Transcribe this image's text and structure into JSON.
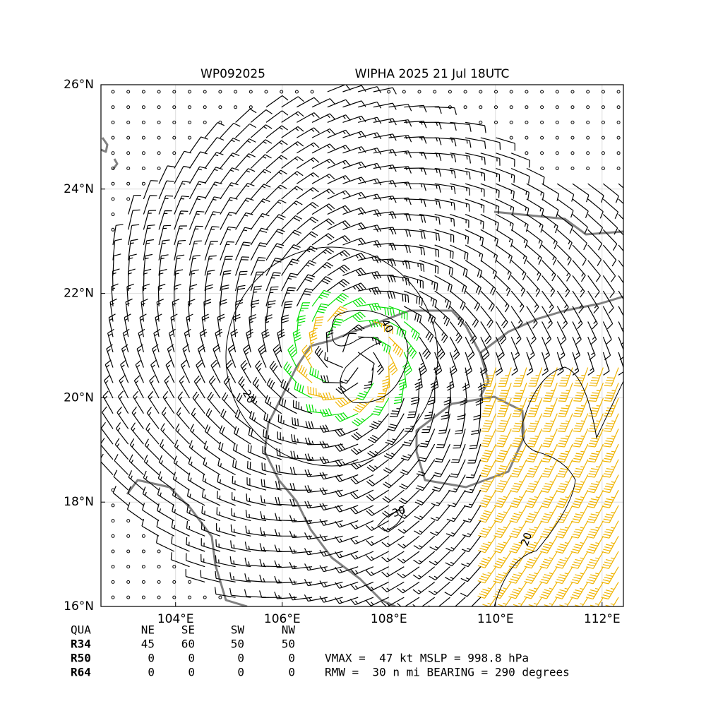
{
  "title_left": "WP092025",
  "title_right": "WIPHA 2025 21 Jul 18UTC",
  "map": {
    "xlim": [
      102.6,
      112.4
    ],
    "ylim": [
      16,
      26
    ],
    "xticks": [
      {
        "value": 104,
        "label": "104°E"
      },
      {
        "value": 106,
        "label": "106°E"
      },
      {
        "value": 108,
        "label": "108°E"
      },
      {
        "value": 110,
        "label": "110°E"
      },
      {
        "value": 112,
        "label": "112°E"
      }
    ],
    "yticks": [
      {
        "value": 16,
        "label": "16°N"
      },
      {
        "value": 18,
        "label": "18°N"
      },
      {
        "value": 20,
        "label": "20°N"
      },
      {
        "value": 22,
        "label": "22°N"
      },
      {
        "value": 24,
        "label": "24°N"
      },
      {
        "value": 26,
        "label": "26°N"
      }
    ],
    "contour_labels": [
      20,
      40,
      30,
      20
    ]
  },
  "table": {
    "header": [
      "QUA",
      "NE",
      "SE",
      "SW",
      "NW"
    ],
    "rows": [
      [
        "R34",
        45,
        60,
        50,
        50
      ],
      [
        "R50",
        0,
        0,
        0,
        0
      ],
      [
        "R64",
        0,
        0,
        0,
        0
      ]
    ]
  },
  "info": [
    "VMAX =  47 kt MSLP = 998.8 hPa",
    "RMW =  30 n mi BEARING = 290 degrees"
  ]
}
